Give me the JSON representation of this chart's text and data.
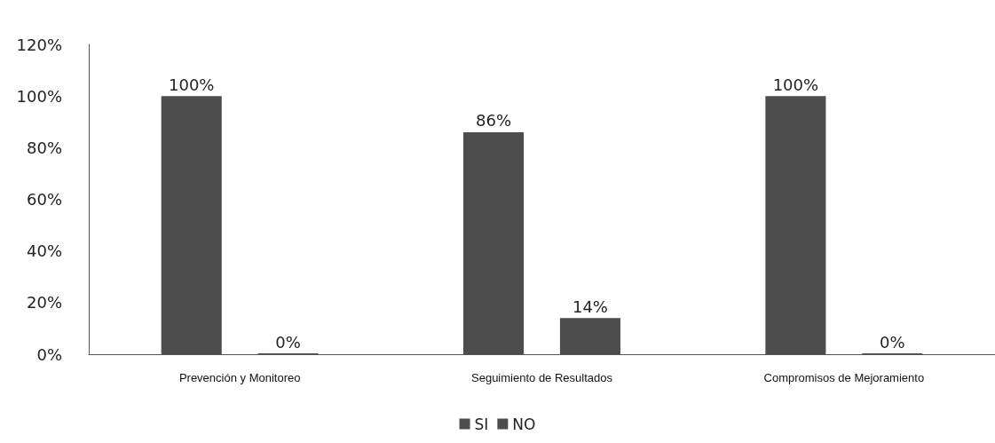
{
  "chart_data": {
    "type": "bar",
    "categories": [
      "Prevención y Monitoreo",
      "Seguimiento de Resultados",
      "Compromisos de Mejoramiento"
    ],
    "series": [
      {
        "name": "SI",
        "color": "#4d4d4d",
        "values": [
          100,
          86,
          100
        ],
        "value_labels": [
          "100%",
          "86%",
          "100%"
        ]
      },
      {
        "name": "NO",
        "color": "#4d4d4d",
        "values": [
          0,
          14,
          0
        ],
        "value_labels": [
          "0%",
          "14%",
          "0%"
        ]
      }
    ],
    "ylim": [
      0,
      120
    ],
    "yticks": [
      {
        "value": 0,
        "label": "0%"
      },
      {
        "value": 20,
        "label": "20%"
      },
      {
        "value": 40,
        "label": "40%"
      },
      {
        "value": 60,
        "label": "60%"
      },
      {
        "value": 80,
        "label": "80%"
      },
      {
        "value": 100,
        "label": "100%"
      },
      {
        "value": 120,
        "label": "120%"
      }
    ],
    "grid": false,
    "legend": "bottom"
  }
}
